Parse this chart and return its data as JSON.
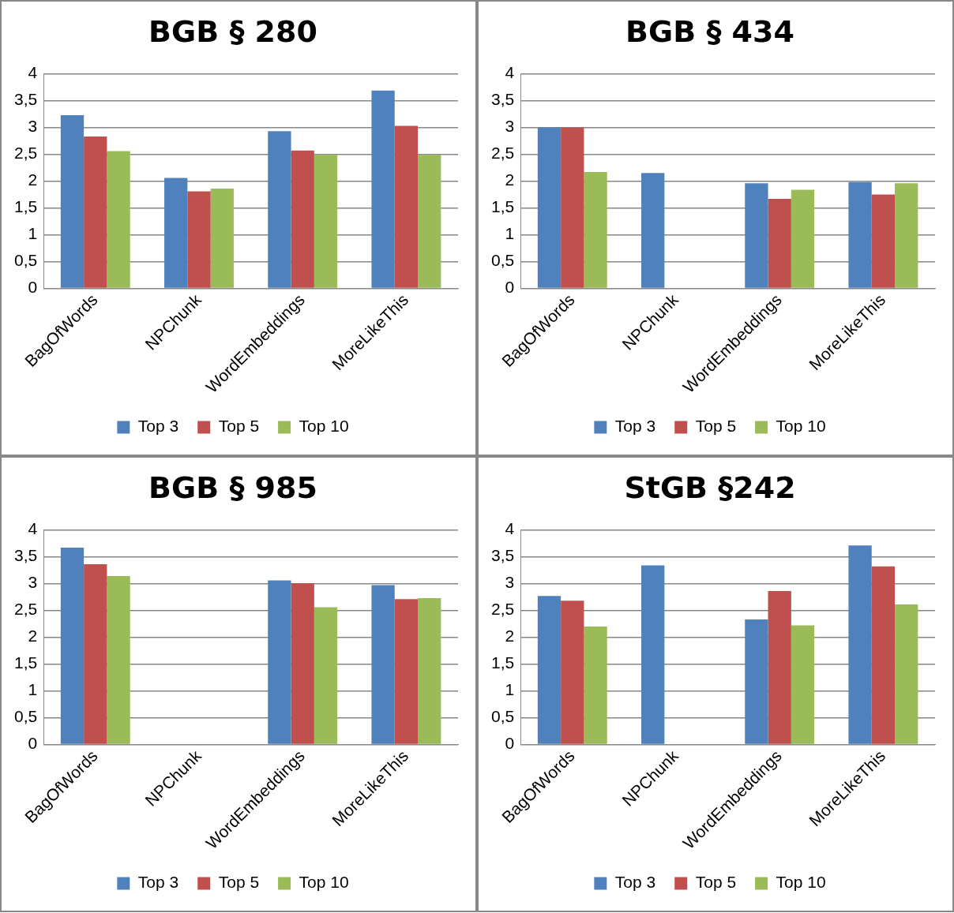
{
  "chart_data": [
    {
      "type": "bar",
      "title": "BGB § 280",
      "categories": [
        "BagOfWords",
        "NPChunk",
        "WordEmbeddings",
        "MoreLikeThis"
      ],
      "series": [
        {
          "name": "Top 3",
          "color": "#4f81bd",
          "values": [
            3.23,
            2.06,
            2.93,
            3.69
          ]
        },
        {
          "name": "Top 5",
          "color": "#c0504d",
          "values": [
            2.83,
            1.81,
            2.57,
            3.03
          ]
        },
        {
          "name": "Top 10",
          "color": "#9bbb59",
          "values": [
            2.56,
            1.86,
            2.49,
            2.49
          ]
        }
      ],
      "ylim": [
        0,
        4
      ],
      "yticks": [
        0,
        {
          "value": 0.5,
          "label": "0,5"
        },
        1,
        {
          "value": 1.5,
          "label": "1,5"
        },
        2,
        {
          "value": 2.5,
          "label": "2,5"
        },
        3,
        {
          "value": 3.5,
          "label": "3,5"
        },
        4
      ],
      "grid": "y",
      "legend": "bottom"
    },
    {
      "type": "bar",
      "title": "BGB § 434",
      "categories": [
        "BagOfWords",
        "NPChunk",
        "WordEmbeddings",
        "MoreLikeThis"
      ],
      "series": [
        {
          "name": "Top 3",
          "color": "#4f81bd",
          "values": [
            3.0,
            2.15,
            1.96,
            1.98
          ]
        },
        {
          "name": "Top 5",
          "color": "#c0504d",
          "values": [
            3.0,
            null,
            1.67,
            1.75
          ]
        },
        {
          "name": "Top 10",
          "color": "#9bbb59",
          "values": [
            2.17,
            null,
            1.84,
            1.96
          ]
        }
      ],
      "ylim": [
        0,
        4
      ],
      "yticks": [
        0,
        {
          "value": 0.5,
          "label": "0,5"
        },
        1,
        {
          "value": 1.5,
          "label": "1,5"
        },
        2,
        {
          "value": 2.5,
          "label": "2,5"
        },
        3,
        {
          "value": 3.5,
          "label": "3,5"
        },
        4
      ],
      "grid": "y",
      "legend": "bottom"
    },
    {
      "type": "bar",
      "title": "BGB § 985",
      "categories": [
        "BagOfWords",
        "NPChunk",
        "WordEmbeddings",
        "MoreLikeThis"
      ],
      "series": [
        {
          "name": "Top 3",
          "color": "#4f81bd",
          "values": [
            3.67,
            null,
            3.06,
            2.97
          ]
        },
        {
          "name": "Top 5",
          "color": "#c0504d",
          "values": [
            3.36,
            null,
            3.01,
            2.71
          ]
        },
        {
          "name": "Top 10",
          "color": "#9bbb59",
          "values": [
            3.14,
            null,
            2.56,
            2.73
          ]
        }
      ],
      "ylim": [
        0,
        4
      ],
      "yticks": [
        0,
        {
          "value": 0.5,
          "label": "0,5"
        },
        1,
        {
          "value": 1.5,
          "label": "1,5"
        },
        2,
        {
          "value": 2.5,
          "label": "2,5"
        },
        3,
        {
          "value": 3.5,
          "label": "3,5"
        },
        4
      ],
      "grid": "y",
      "legend": "bottom"
    },
    {
      "type": "bar",
      "title": "StGB §242",
      "categories": [
        "BagOfWords",
        "NPChunk",
        "WordEmbeddings",
        "MoreLikeThis"
      ],
      "series": [
        {
          "name": "Top 3",
          "color": "#4f81bd",
          "values": [
            2.77,
            3.34,
            2.33,
            3.71
          ]
        },
        {
          "name": "Top 5",
          "color": "#c0504d",
          "values": [
            2.68,
            null,
            2.86,
            3.32
          ]
        },
        {
          "name": "Top 10",
          "color": "#9bbb59",
          "values": [
            2.2,
            null,
            2.22,
            2.61
          ]
        }
      ],
      "ylim": [
        0,
        4
      ],
      "yticks": [
        0,
        {
          "value": 0.5,
          "label": "0,5"
        },
        1,
        {
          "value": 1.5,
          "label": "1,5"
        },
        2,
        {
          "value": 2.5,
          "label": "2,5"
        },
        3,
        {
          "value": 3.5,
          "label": "3,5"
        },
        4
      ],
      "grid": "y",
      "legend": "bottom"
    }
  ]
}
